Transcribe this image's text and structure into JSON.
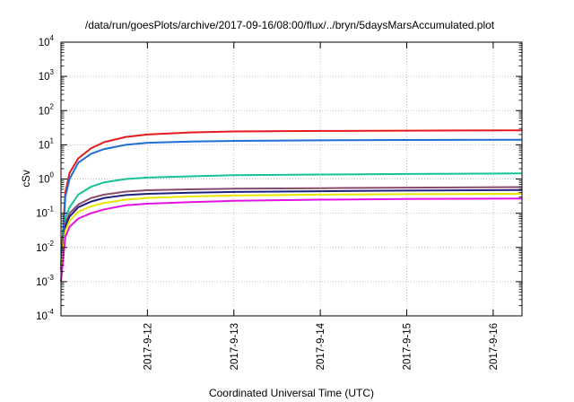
{
  "chart_data": {
    "type": "line",
    "title": "/data/run/goesPlots/archive/2017-09-16/08:00/flux/../bryn/5daysMarsAccumulated.plot",
    "xlabel": "Coordinated Universal Time (UTC)",
    "ylabel": "cSv",
    "y_scale": "log",
    "ylim": [
      0.0001,
      10000
    ],
    "y_ticks": [
      {
        "base": "10",
        "exp": "-4"
      },
      {
        "base": "10",
        "exp": "-3"
      },
      {
        "base": "10",
        "exp": "-2"
      },
      {
        "base": "10",
        "exp": "-1"
      },
      {
        "base": "10",
        "exp": "0"
      },
      {
        "base": "10",
        "exp": "1"
      },
      {
        "base": "10",
        "exp": "2"
      },
      {
        "base": "10",
        "exp": "3"
      },
      {
        "base": "10",
        "exp": "4"
      }
    ],
    "xlim": [
      "2017-09-11 00:00",
      "2017-09-16 08:00"
    ],
    "x_ticks": [
      "2017-9-12",
      "2017-9-13",
      "2017-9-14",
      "2017-9-15",
      "2017-9-16"
    ],
    "grid": true,
    "x_sample_days": [
      0.0,
      0.05,
      0.1,
      0.2,
      0.35,
      0.5,
      0.75,
      1.0,
      1.5,
      2.0,
      3.0,
      4.0,
      5.33
    ],
    "series": [
      {
        "color": "#e41a1c",
        "values": [
          0.003,
          0.4,
          1.5,
          4.0,
          8.0,
          12.0,
          17.0,
          20.0,
          23.0,
          24.5,
          25.5,
          26.0,
          26.5
        ]
      },
      {
        "color": "#1f6fd6",
        "values": [
          0.002,
          0.3,
          1.0,
          3.0,
          5.5,
          7.5,
          10.0,
          11.5,
          12.5,
          13.0,
          13.5,
          13.8,
          14.0
        ]
      },
      {
        "color": "#17c19a",
        "values": [
          0.002,
          0.07,
          0.15,
          0.35,
          0.6,
          0.8,
          1.0,
          1.1,
          1.2,
          1.3,
          1.35,
          1.4,
          1.45
        ]
      },
      {
        "color": "#8b4a6b",
        "values": [
          0.002,
          0.05,
          0.1,
          0.18,
          0.28,
          0.35,
          0.43,
          0.47,
          0.5,
          0.52,
          0.54,
          0.56,
          0.58
        ]
      },
      {
        "color": "#202080",
        "values": [
          0.002,
          0.04,
          0.08,
          0.15,
          0.22,
          0.28,
          0.34,
          0.37,
          0.4,
          0.42,
          0.44,
          0.46,
          0.48
        ]
      },
      {
        "color": "#e6e600",
        "values": [
          0.002,
          0.03,
          0.06,
          0.11,
          0.16,
          0.2,
          0.25,
          0.28,
          0.31,
          0.33,
          0.35,
          0.36,
          0.37
        ]
      },
      {
        "color": "#e610e6",
        "values": [
          0.001,
          0.02,
          0.04,
          0.07,
          0.1,
          0.13,
          0.17,
          0.19,
          0.21,
          0.23,
          0.25,
          0.26,
          0.27
        ]
      }
    ]
  }
}
